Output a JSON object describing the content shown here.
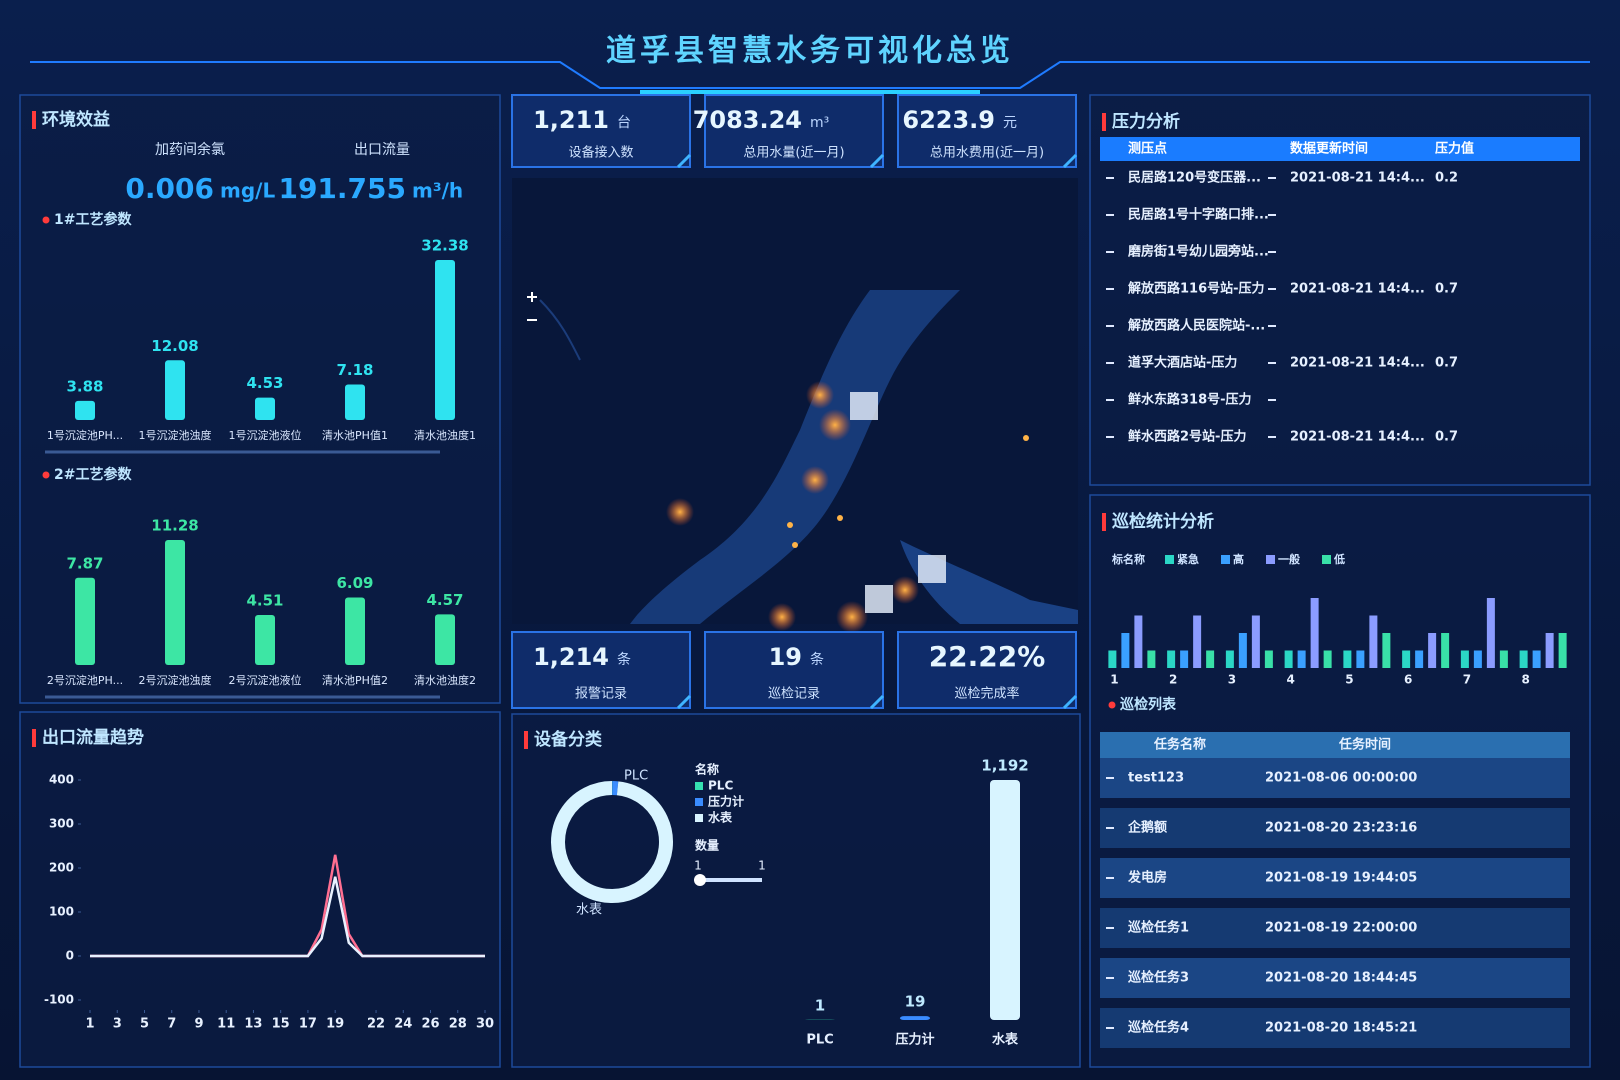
{
  "header": {
    "title": "道孚县智慧水务可视化总览"
  },
  "environment": {
    "title": "环境效益",
    "metrics": [
      {
        "label": "加药间余氯",
        "value": 0.006,
        "unit": "mg/L"
      },
      {
        "label": "出口流量",
        "value": 191.755,
        "unit": "m³/h"
      }
    ]
  },
  "process1": {
    "title": "1#工艺参数",
    "color": "#2fe3f0",
    "categories": [
      "1号沉淀池PH...",
      "1号沉淀池浊度",
      "1号沉淀池液位",
      "清水池PH值1",
      "清水池浊度1"
    ],
    "values": [
      3.88,
      12.08,
      4.53,
      7.18,
      32.38
    ]
  },
  "process2": {
    "title": "2#工艺参数",
    "color": "#3de6a4",
    "categories": [
      "2号沉淀池PH...",
      "2号沉淀池浊度",
      "2号沉淀池液位",
      "清水池PH值2",
      "清水池浊度2"
    ],
    "values": [
      7.87,
      11.28,
      4.51,
      6.09,
      4.57
    ]
  },
  "flow": {
    "title": "出口流量趋势",
    "type": "line",
    "x": [
      1,
      2,
      3,
      4,
      5,
      6,
      7,
      8,
      9,
      10,
      11,
      12,
      13,
      14,
      15,
      16,
      17,
      18,
      19,
      20,
      21,
      22,
      23,
      24,
      25,
      26,
      27,
      28,
      29,
      30
    ],
    "xlim": [
      1,
      30
    ],
    "xticks": [
      1,
      3,
      5,
      7,
      9,
      11,
      13,
      15,
      17,
      19,
      22,
      24,
      26,
      28,
      30
    ],
    "ylim": [
      -100,
      400
    ],
    "yticks": [
      -100,
      0,
      100,
      200,
      300,
      400
    ],
    "series": [
      {
        "color": "#ff6f91",
        "values": [
          0,
          0,
          0,
          0,
          0,
          0,
          0,
          0,
          0,
          0,
          0,
          0,
          0,
          0,
          0,
          0,
          0,
          60,
          230,
          50,
          0,
          0,
          0,
          0,
          0,
          0,
          0,
          0,
          0,
          0
        ]
      },
      {
        "color": "#e8f1ff",
        "values": [
          0,
          0,
          0,
          0,
          0,
          0,
          0,
          0,
          0,
          0,
          0,
          0,
          0,
          0,
          0,
          0,
          0,
          40,
          180,
          30,
          0,
          0,
          0,
          0,
          0,
          0,
          0,
          0,
          0,
          0
        ]
      }
    ]
  },
  "kpis_top": [
    {
      "value": "1,211",
      "unit": "台",
      "label": "设备接入数"
    },
    {
      "value": 7083.24,
      "unit": "m³",
      "label": "总用水量(近一月)"
    },
    {
      "value": 6223.9,
      "unit": "元",
      "label": "总用水费用(近一月)"
    }
  ],
  "kpis_bottom": [
    {
      "value": "1,214",
      "unit": "条",
      "label": "报警记录"
    },
    {
      "value": 19,
      "unit": "条",
      "label": "巡检记录"
    },
    {
      "value": "22.22%",
      "label": "巡检完成率"
    }
  ],
  "device": {
    "title": "设备分类",
    "type": "bar",
    "categories": [
      "PLC",
      "压力计",
      "水表"
    ],
    "values": [
      1,
      19,
      1192
    ],
    "value_labels": [
      "1",
      "19",
      "1,192"
    ],
    "colors": [
      "#35e0b0",
      "#3a8cff",
      "#d8f4ff"
    ],
    "legend_title": "名称",
    "slider": {
      "label": "数量",
      "min": 1,
      "max": 1
    }
  },
  "pressure": {
    "title": "压力分析",
    "headers": [
      "测压点",
      "数据更新时间",
      "压力值"
    ],
    "rows": [
      {
        "point": "民居路120号变压器...",
        "time": "2021-08-21 14:4...",
        "value": 0.2
      },
      {
        "point": "民居路1号十字路口排..."
      },
      {
        "point": "磨房街1号幼儿园旁站..."
      },
      {
        "point": "解放西路116号站-压力",
        "time": "2021-08-21 14:4...",
        "value": 0.7
      },
      {
        "point": "解放西路人民医院站-..."
      },
      {
        "point": "道孚大酒店站-压力",
        "time": "2021-08-21 14:4...",
        "value": 0.7
      },
      {
        "point": "鲜水东路318号-压力"
      },
      {
        "point": "鲜水西路2号站-压力",
        "time": "2021-08-21 14:4...",
        "value": 0.7
      }
    ]
  },
  "inspection_stats": {
    "title": "巡检统计分析",
    "type": "bar",
    "legend_title": "标名称",
    "categories": [
      "1",
      "2",
      "3",
      "4",
      "5",
      "6",
      "7",
      "8"
    ],
    "series": [
      {
        "name": "紧急",
        "color": "#2bd7c6",
        "values": [
          1,
          1,
          1,
          1,
          1,
          1,
          1,
          1
        ]
      },
      {
        "name": "高",
        "color": "#3aa0ff",
        "values": [
          2,
          1,
          2,
          1,
          1,
          1,
          1,
          1
        ]
      },
      {
        "name": "一般",
        "color": "#8b9cff",
        "values": [
          3,
          3,
          3,
          4,
          3,
          2,
          4,
          2
        ]
      },
      {
        "name": "低",
        "color": "#39e0a8",
        "values": [
          1,
          1,
          1,
          1,
          2,
          2,
          1,
          2
        ]
      }
    ]
  },
  "inspection_list": {
    "title": "巡检列表",
    "headers": [
      "任务名称",
      "任务时间"
    ],
    "rows": [
      [
        "test123",
        "2021-08-06 00:00:00"
      ],
      [
        "企鹅额",
        "2021-08-20 23:23:16"
      ],
      [
        "发电房",
        "2021-08-19 19:44:05"
      ],
      [
        "巡检任务1",
        "2021-08-19 22:00:00"
      ],
      [
        "巡检任务3",
        "2021-08-20 18:44:45"
      ],
      [
        "巡检任务4",
        "2021-08-20 18:45:21"
      ]
    ]
  }
}
